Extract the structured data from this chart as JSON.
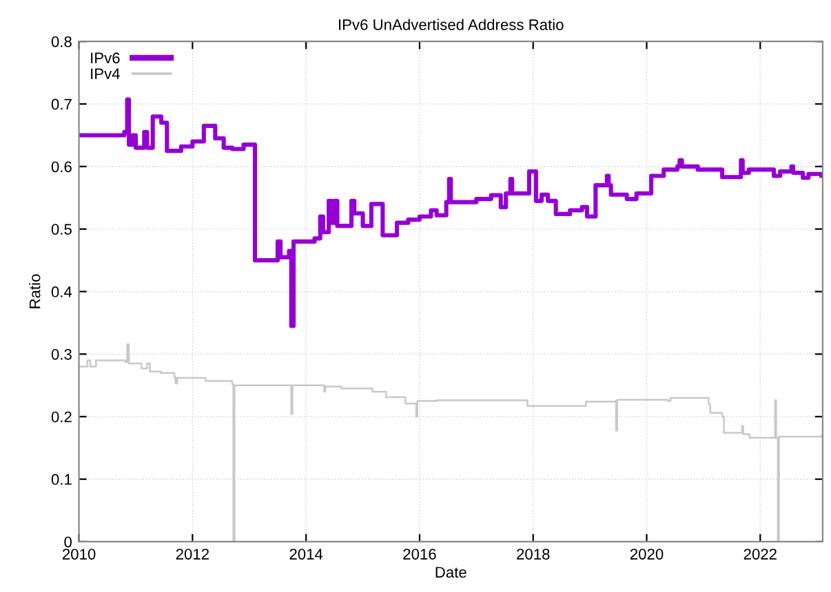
{
  "chart_data": {
    "type": "step",
    "title": "IPv6 UnAdvertised Address Ratio",
    "xlabel": "Date",
    "ylabel": "Ratio",
    "xlim": [
      2010,
      2023.1
    ],
    "xticks": [
      2010,
      2012,
      2014,
      2016,
      2018,
      2020,
      2022
    ],
    "ylim": [
      0,
      0.8
    ],
    "yticks": [
      0,
      0.1,
      0.2,
      0.3,
      0.4,
      0.5,
      0.6,
      0.7,
      0.8
    ],
    "grid": true,
    "legend": "top left",
    "line_style": "solid",
    "marker": "none",
    "series": [
      {
        "name": "IPv6",
        "color": "#9400d3",
        "x": [
          2010.0,
          2010.8,
          2010.85,
          2010.88,
          2010.95,
          2011.0,
          2011.15,
          2011.2,
          2011.3,
          2011.45,
          2011.55,
          2011.7,
          2011.8,
          2012.0,
          2012.2,
          2012.4,
          2012.55,
          2012.7,
          2012.9,
          2013.1,
          2013.45,
          2013.5,
          2013.55,
          2013.7,
          2013.74,
          2013.78,
          2014.15,
          2014.25,
          2014.3,
          2014.4,
          2014.45,
          2014.5,
          2014.55,
          2014.8,
          2014.85,
          2015.0,
          2015.15,
          2015.35,
          2015.6,
          2015.8,
          2016.0,
          2016.2,
          2016.3,
          2016.47,
          2016.52,
          2016.55,
          2017.0,
          2017.26,
          2017.43,
          2017.52,
          2017.6,
          2017.63,
          2017.93,
          2018.05,
          2018.15,
          2018.26,
          2018.4,
          2018.65,
          2018.86,
          2018.95,
          2019.1,
          2019.3,
          2019.33,
          2019.37,
          2019.65,
          2019.82,
          2020.08,
          2020.3,
          2020.54,
          2020.58,
          2020.62,
          2020.9,
          2021.33,
          2021.66,
          2021.69,
          2021.8,
          2022.24,
          2022.35,
          2022.55,
          2022.58,
          2022.75,
          2022.85,
          2023.08
        ],
        "values": [
          0.65,
          0.655,
          0.707,
          0.635,
          0.65,
          0.63,
          0.655,
          0.63,
          0.68,
          0.67,
          0.625,
          0.625,
          0.632,
          0.64,
          0.665,
          0.645,
          0.63,
          0.628,
          0.635,
          0.45,
          0.45,
          0.48,
          0.455,
          0.465,
          0.345,
          0.48,
          0.485,
          0.52,
          0.495,
          0.545,
          0.51,
          0.545,
          0.505,
          0.545,
          0.525,
          0.505,
          0.54,
          0.49,
          0.51,
          0.515,
          0.52,
          0.53,
          0.522,
          0.543,
          0.58,
          0.543,
          0.548,
          0.554,
          0.535,
          0.557,
          0.58,
          0.557,
          0.592,
          0.545,
          0.555,
          0.545,
          0.524,
          0.53,
          0.535,
          0.52,
          0.57,
          0.585,
          0.57,
          0.555,
          0.548,
          0.557,
          0.585,
          0.595,
          0.6,
          0.61,
          0.6,
          0.595,
          0.583,
          0.61,
          0.59,
          0.595,
          0.585,
          0.592,
          0.6,
          0.59,
          0.582,
          0.588,
          0.585
        ]
      },
      {
        "name": "IPv4",
        "color": "#c8c8c8",
        "x": [
          2010.0,
          2010.15,
          2010.2,
          2010.3,
          2010.82,
          2010.85,
          2010.88,
          2011.1,
          2011.2,
          2011.25,
          2011.44,
          2011.68,
          2011.7,
          2011.73,
          2012.23,
          2012.7,
          2012.72,
          2012.74,
          2013.26,
          2013.74,
          2013.76,
          2014.3,
          2014.32,
          2014.34,
          2014.62,
          2015.17,
          2015.41,
          2015.75,
          2015.94,
          2015.96,
          2016.3,
          2017.9,
          2018.93,
          2019.44,
          2019.46,
          2019.48,
          2019.72,
          2020.37,
          2020.42,
          2021.09,
          2021.12,
          2021.33,
          2021.36,
          2021.66,
          2021.68,
          2021.7,
          2021.81,
          2022.24,
          2022.26,
          2022.28,
          2022.31,
          2022.33,
          2023.08
        ],
        "values": [
          0.28,
          0.29,
          0.28,
          0.29,
          0.287,
          0.316,
          0.285,
          0.277,
          0.285,
          0.272,
          0.27,
          0.263,
          0.253,
          0.262,
          0.257,
          0.252,
          0,
          0.25,
          0.25,
          0.204,
          0.25,
          0.25,
          0.24,
          0.248,
          0.245,
          0.24,
          0.231,
          0.221,
          0.2,
          0.225,
          0.226,
          0.217,
          0.224,
          0.225,
          0.178,
          0.227,
          0.227,
          0.225,
          0.23,
          0.22,
          0.206,
          0.2,
          0.174,
          0.174,
          0.185,
          0.172,
          0.166,
          0.166,
          0.226,
          0.166,
          0,
          0.168,
          0.17
        ]
      }
    ]
  }
}
